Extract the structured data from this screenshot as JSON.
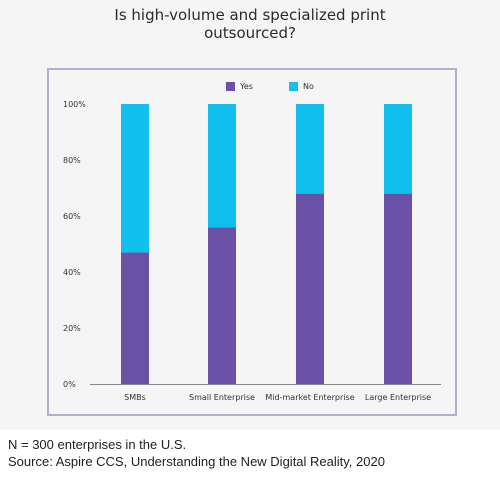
{
  "chart_data": {
    "type": "bar",
    "stacked": true,
    "percent": true,
    "title": "Is high-volume and specialized print outsourced?",
    "categories": [
      "SMBs",
      "Small Enterprise",
      "Mid-market Enterprise",
      "Large Enterprise"
    ],
    "series": [
      {
        "name": "Yes",
        "color": "#6a51a6",
        "values": [
          47,
          56,
          68,
          68
        ]
      },
      {
        "name": "No",
        "color": "#12c0ef",
        "values": [
          53,
          44,
          32,
          32
        ]
      }
    ],
    "y_ticks": [
      "0%",
      "20%",
      "40%",
      "60%",
      "80%",
      "100%"
    ],
    "ylim": [
      0,
      100
    ],
    "legend_position": "top",
    "grid": false
  },
  "notes": {
    "sample": "N = 300 enterprises in the U.S.",
    "source": "Source: Aspire CCS, Understanding the New Digital Reality, 2020"
  }
}
